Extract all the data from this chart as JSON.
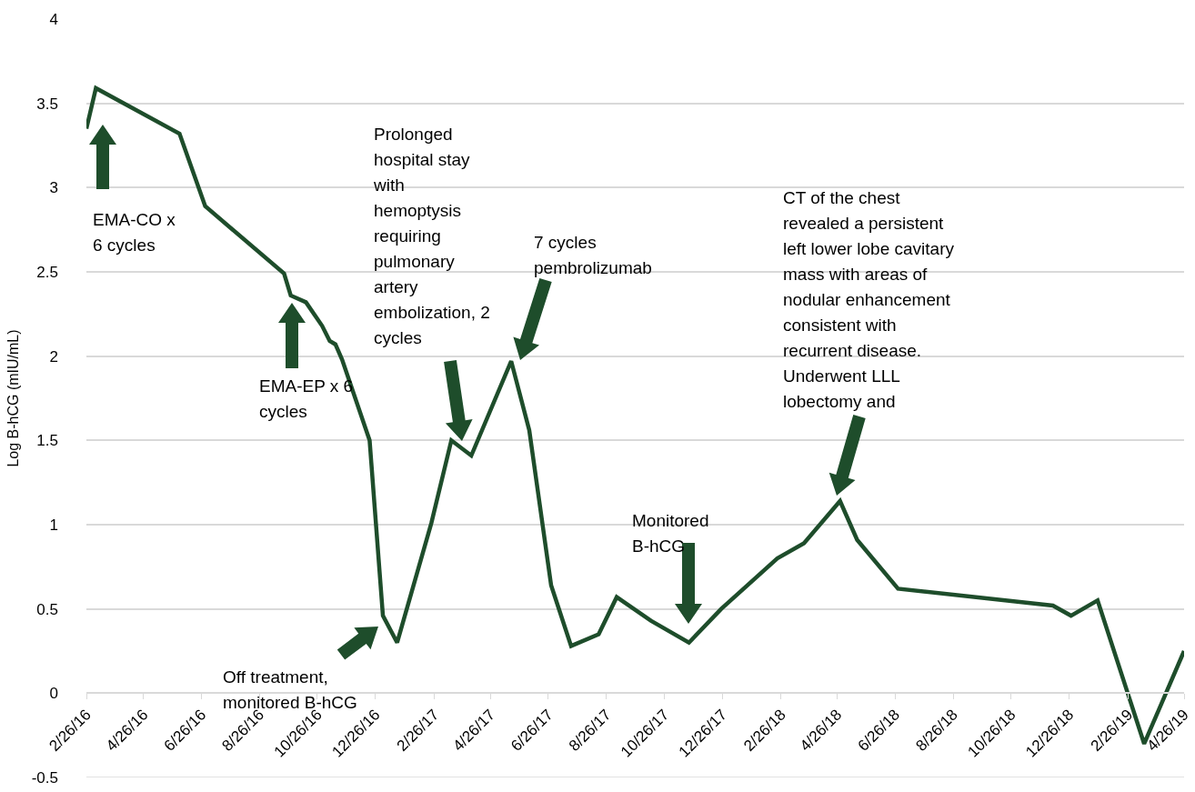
{
  "chart_data": {
    "type": "line",
    "ylabel": "Log B-hCG (mIU/mL)",
    "x": [
      "2016-02-26",
      "2016-03-07",
      "2016-06-03",
      "2016-06-30",
      "2016-09-21",
      "2016-09-28",
      "2016-10-14",
      "2016-10-31",
      "2016-11-08",
      "2016-11-14",
      "2016-11-21",
      "2016-12-20",
      "2017-01-03",
      "2017-01-18",
      "2017-02-23",
      "2017-03-16",
      "2017-04-06",
      "2017-05-18",
      "2017-06-06",
      "2017-06-29",
      "2017-07-20",
      "2017-08-18",
      "2017-09-06",
      "2017-10-12",
      "2017-11-21",
      "2017-12-25",
      "2018-02-22",
      "2018-03-22",
      "2018-04-29",
      "2018-05-17",
      "2018-06-29",
      "2018-12-09",
      "2018-12-28",
      "2019-01-25",
      "2019-03-15",
      "2019-04-26"
    ],
    "series": [
      {
        "color": "#1e4d2b",
        "values": [
          3.35,
          3.59,
          3.32,
          2.89,
          2.49,
          2.36,
          2.32,
          2.18,
          2.09,
          2.07,
          1.98,
          1.5,
          0.46,
          0.3,
          1.01,
          1.5,
          1.41,
          1.97,
          1.56,
          0.64,
          0.28,
          0.35,
          0.57,
          0.43,
          0.3,
          0.5,
          0.8,
          0.89,
          1.14,
          0.91,
          0.62,
          0.52,
          0.46,
          0.55,
          -0.3,
          0.25
        ]
      }
    ],
    "xlim": [
      "2016-02-26",
      "2019-04-26"
    ],
    "xticks": [
      {
        "value": "2016-02-26",
        "label": "2/26/16"
      },
      {
        "value": "2016-04-26",
        "label": "4/26/16"
      },
      {
        "value": "2016-06-26",
        "label": "6/26/16"
      },
      {
        "value": "2016-08-26",
        "label": "8/26/16"
      },
      {
        "value": "2016-10-26",
        "label": "10/26/16"
      },
      {
        "value": "2016-12-26",
        "label": "12/26/16"
      },
      {
        "value": "2017-02-26",
        "label": "2/26/17"
      },
      {
        "value": "2017-04-26",
        "label": "4/26/17"
      },
      {
        "value": "2017-06-26",
        "label": "6/26/17"
      },
      {
        "value": "2017-08-26",
        "label": "8/26/17"
      },
      {
        "value": "2017-10-26",
        "label": "10/26/17"
      },
      {
        "value": "2017-12-26",
        "label": "12/26/17"
      },
      {
        "value": "2018-02-26",
        "label": "2/26/18"
      },
      {
        "value": "2018-04-26",
        "label": "4/26/18"
      },
      {
        "value": "2018-06-26",
        "label": "6/26/18"
      },
      {
        "value": "2018-08-26",
        "label": "8/26/18"
      },
      {
        "value": "2018-10-26",
        "label": "10/26/18"
      },
      {
        "value": "2018-12-26",
        "label": "12/26/18"
      },
      {
        "value": "2019-02-26",
        "label": "2/26/19"
      },
      {
        "value": "2019-04-26",
        "label": "4/26/19"
      }
    ],
    "ylim": [
      -0.5,
      4
    ],
    "yticks": [
      -0.5,
      0,
      0.5,
      1,
      1.5,
      2,
      2.5,
      3,
      3.5,
      4
    ],
    "grid": "y",
    "annotations": [
      "EMA-CO x\n6 cycles",
      "EMA-EP x 6\ncycles",
      "Off treatment,\nmonitored B-hCG",
      "Prolonged\nhospital stay\nwith\nhemoptysis\nrequiring\npulmonary\nartery\nembolization, 2\ncycles",
      "7 cycles\npembrolizumab",
      "Monitored\nB-hCG",
      "CT of the chest\nrevealed a persistent\nleft lower lobe cavitary\nmass with areas of\nnodular enhancement\nconsistent with\nrecurrent disease.\nUnderwent LLL\nlobectomy and"
    ]
  }
}
